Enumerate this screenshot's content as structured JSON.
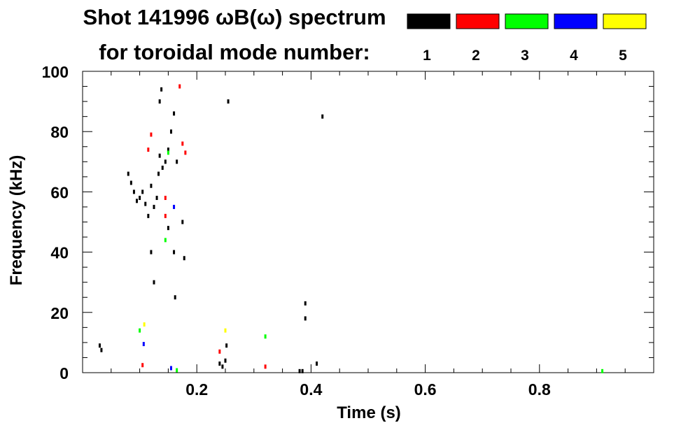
{
  "chart_data": {
    "type": "scatter",
    "title": "Shot 141996 ωB(ω) spectrum",
    "subtitle": "for toroidal mode number:",
    "xlabel": "Time (s)",
    "ylabel": "Frequency (kHz)",
    "xlim": [
      0.0,
      1.0
    ],
    "ylim": [
      0,
      100
    ],
    "x_ticks": [
      0.2,
      0.4,
      0.6,
      0.8
    ],
    "x_tick_labels": [
      "0.2",
      "0.4",
      "0.6",
      "0.8"
    ],
    "y_ticks": [
      0,
      20,
      40,
      60,
      80,
      100
    ],
    "y_tick_labels": [
      "0",
      "20",
      "40",
      "60",
      "80",
      "100"
    ],
    "grid": false,
    "legend_position": "top-right",
    "series": [
      {
        "name": "1",
        "color": "#000000",
        "points": [
          [
            0.03,
            9
          ],
          [
            0.033,
            7.5
          ],
          [
            0.08,
            66
          ],
          [
            0.085,
            63
          ],
          [
            0.09,
            60
          ],
          [
            0.095,
            57
          ],
          [
            0.1,
            58
          ],
          [
            0.105,
            60
          ],
          [
            0.11,
            56
          ],
          [
            0.115,
            52
          ],
          [
            0.12,
            62
          ],
          [
            0.125,
            55
          ],
          [
            0.13,
            58
          ],
          [
            0.133,
            66
          ],
          [
            0.135,
            72
          ],
          [
            0.14,
            68
          ],
          [
            0.145,
            70
          ],
          [
            0.15,
            74
          ],
          [
            0.155,
            80
          ],
          [
            0.16,
            86
          ],
          [
            0.165,
            70
          ],
          [
            0.135,
            90
          ],
          [
            0.138,
            94
          ],
          [
            0.12,
            40
          ],
          [
            0.125,
            30
          ],
          [
            0.16,
            40
          ],
          [
            0.162,
            25
          ],
          [
            0.175,
            50
          ],
          [
            0.178,
            38
          ],
          [
            0.15,
            48
          ],
          [
            0.24,
            3
          ],
          [
            0.245,
            2
          ],
          [
            0.25,
            4
          ],
          [
            0.252,
            9
          ],
          [
            0.38,
            0.5
          ],
          [
            0.385,
            0.5
          ],
          [
            0.39,
            18
          ],
          [
            0.39,
            23
          ],
          [
            0.41,
            3
          ],
          [
            0.42,
            85
          ],
          [
            0.255,
            90
          ]
        ]
      },
      {
        "name": "2",
        "color": "#ff0000",
        "points": [
          [
            0.12,
            79
          ],
          [
            0.115,
            74
          ],
          [
            0.18,
            73
          ],
          [
            0.175,
            76
          ],
          [
            0.145,
            58
          ],
          [
            0.17,
            95
          ],
          [
            0.24,
            7
          ],
          [
            0.32,
            2
          ],
          [
            0.105,
            2.5
          ],
          [
            0.145,
            52
          ]
        ]
      },
      {
        "name": "3",
        "color": "#00ff00",
        "points": [
          [
            0.32,
            12
          ],
          [
            0.165,
            0.8
          ],
          [
            0.91,
            0.5
          ],
          [
            0.15,
            73
          ],
          [
            0.1,
            14
          ],
          [
            0.145,
            44
          ]
        ]
      },
      {
        "name": "4",
        "color": "#0000ff",
        "points": [
          [
            0.107,
            9.5
          ],
          [
            0.16,
            55
          ],
          [
            0.155,
            1.5
          ]
        ]
      },
      {
        "name": "5",
        "color": "#ffff00",
        "points": [
          [
            0.108,
            16
          ],
          [
            0.25,
            14
          ]
        ]
      }
    ]
  }
}
